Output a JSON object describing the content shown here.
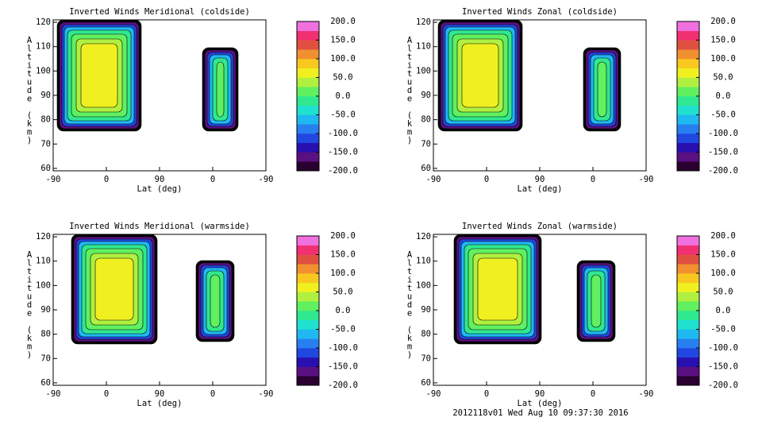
{
  "chart_data": [
    {
      "type": "contour",
      "title": "Inverted Winds Meridional (coldside)",
      "xlabel": "Lat (deg)",
      "ylabel": "Altitude (km)",
      "categories": [
        "-90",
        "0",
        "90",
        "0",
        "-90"
      ],
      "ylim": [
        59,
        121
      ],
      "yticks": [
        60,
        70,
        80,
        90,
        100,
        110,
        120
      ],
      "colorbar": {
        "lim": [
          -200,
          200
        ],
        "ticks": [
          {
            "value": 200,
            "label": "200.0"
          },
          {
            "value": 150,
            "label": "150.0"
          },
          {
            "value": 100,
            "label": "100.0"
          },
          {
            "value": 50,
            "label": "50.0"
          },
          {
            "value": 0,
            "label": "0.0"
          },
          {
            "value": -50,
            "label": "-50.0"
          },
          {
            "value": -100,
            "label": "-100.0"
          },
          {
            "value": -150,
            "label": "-150.0"
          },
          {
            "value": -200,
            "label": "-200.0"
          }
        ],
        "colors": [
          "#2a0030",
          "#5a1080",
          "#2810b0",
          "#2048e0",
          "#2880f0",
          "#20b8f0",
          "#20e0d0",
          "#30e890",
          "#60f060",
          "#b0f040",
          "#f0f020",
          "#f8c820",
          "#f09030",
          "#e05040",
          "#f03070",
          "#f070e0"
        ]
      }
    },
    {
      "type": "contour",
      "title": "Inverted Winds Zonal (coldside)",
      "xlabel": "Lat (deg)",
      "ylabel": "Altitude (km)",
      "categories": [
        "-90",
        "0",
        "90",
        "0",
        "-90"
      ],
      "ylim": [
        59,
        121
      ],
      "yticks": [
        60,
        70,
        80,
        90,
        100,
        110,
        120
      ],
      "colorbar": {
        "lim": [
          -200,
          200
        ],
        "ticks": [
          {
            "value": 200,
            "label": "200.0"
          },
          {
            "value": 150,
            "label": "150.0"
          },
          {
            "value": 100,
            "label": "100.0"
          },
          {
            "value": 50,
            "label": "50.0"
          },
          {
            "value": 0,
            "label": "0.0"
          },
          {
            "value": -50,
            "label": "-50.0"
          },
          {
            "value": -100,
            "label": "-100.0"
          },
          {
            "value": -150,
            "label": "-150.0"
          },
          {
            "value": -200,
            "label": "-200.0"
          }
        ],
        "colors": [
          "#2a0030",
          "#5a1080",
          "#2810b0",
          "#2048e0",
          "#2880f0",
          "#20b8f0",
          "#20e0d0",
          "#30e890",
          "#60f060",
          "#b0f040",
          "#f0f020",
          "#f8c820",
          "#f09030",
          "#e05040",
          "#f03070",
          "#f070e0"
        ]
      }
    },
    {
      "type": "contour",
      "title": "Inverted Winds Meridional (warmside)",
      "xlabel": "Lat (deg)",
      "ylabel": "Altitude (km)",
      "categories": [
        "-90",
        "0",
        "90",
        "0",
        "-90"
      ],
      "ylim": [
        59,
        121
      ],
      "yticks": [
        60,
        70,
        80,
        90,
        100,
        110,
        120
      ],
      "colorbar": {
        "lim": [
          -200,
          200
        ],
        "ticks": [
          {
            "value": 200,
            "label": "200.0"
          },
          {
            "value": 150,
            "label": "150.0"
          },
          {
            "value": 100,
            "label": "100.0"
          },
          {
            "value": 50,
            "label": "50.0"
          },
          {
            "value": 0,
            "label": "0.0"
          },
          {
            "value": -50,
            "label": "-50.0"
          },
          {
            "value": -100,
            "label": "-100.0"
          },
          {
            "value": -150,
            "label": "-150.0"
          },
          {
            "value": -200,
            "label": "-200.0"
          }
        ],
        "colors": [
          "#2a0030",
          "#5a1080",
          "#2810b0",
          "#2048e0",
          "#2880f0",
          "#20b8f0",
          "#20e0d0",
          "#30e890",
          "#60f060",
          "#b0f040",
          "#f0f020",
          "#f8c820",
          "#f09030",
          "#e05040",
          "#f03070",
          "#f070e0"
        ]
      }
    },
    {
      "type": "contour",
      "title": "Inverted Winds Zonal (warmside)",
      "xlabel": "Lat (deg)",
      "ylabel": "Altitude (km)",
      "categories": [
        "-90",
        "0",
        "90",
        "0",
        "-90"
      ],
      "ylim": [
        59,
        121
      ],
      "yticks": [
        60,
        70,
        80,
        90,
        100,
        110,
        120
      ],
      "colorbar": {
        "lim": [
          -200,
          200
        ],
        "ticks": [
          {
            "value": 200,
            "label": "200.0"
          },
          {
            "value": 150,
            "label": "150.0"
          },
          {
            "value": 100,
            "label": "100.0"
          },
          {
            "value": 50,
            "label": "50.0"
          },
          {
            "value": 0,
            "label": "0.0"
          },
          {
            "value": -50,
            "label": "-50.0"
          },
          {
            "value": -100,
            "label": "-100.0"
          },
          {
            "value": -150,
            "label": "-150.0"
          },
          {
            "value": -200,
            "label": "-200.0"
          }
        ],
        "colors": [
          "#2a0030",
          "#5a1080",
          "#2810b0",
          "#2048e0",
          "#2880f0",
          "#20b8f0",
          "#20e0d0",
          "#30e890",
          "#60f060",
          "#b0f040",
          "#f0f020",
          "#f8c820",
          "#f09030",
          "#e05040",
          "#f03070",
          "#f070e0"
        ]
      }
    }
  ],
  "footer": "2012118v01 Wed Aug 10 09:37:30 2016"
}
